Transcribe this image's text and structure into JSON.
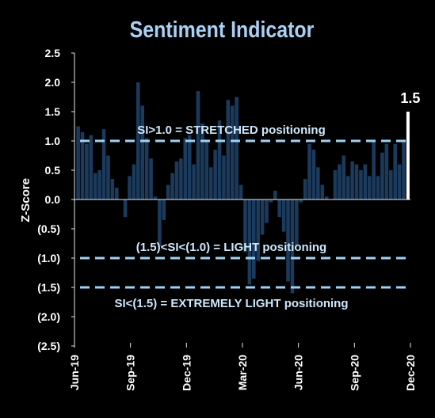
{
  "chart_data": {
    "type": "bar",
    "title": "Sentiment Indicator",
    "ylabel": "Z-Score",
    "xlabel": "",
    "ylim": [
      -2.5,
      2.5
    ],
    "y_ticks": [
      {
        "value": 2.5,
        "label": "2.5"
      },
      {
        "value": 2.0,
        "label": "2.0"
      },
      {
        "value": 1.5,
        "label": "1.5"
      },
      {
        "value": 1.0,
        "label": "1.0"
      },
      {
        "value": 0.5,
        "label": "0.5"
      },
      {
        "value": 0.0,
        "label": "0.0"
      },
      {
        "value": -0.5,
        "label": "(0.5)"
      },
      {
        "value": -1.0,
        "label": "(1.0)"
      },
      {
        "value": -1.5,
        "label": "(1.5)"
      },
      {
        "value": -2.0,
        "label": "(2.0)"
      },
      {
        "value": -2.5,
        "label": "(2.5)"
      }
    ],
    "x_ticks": [
      "Jun-19",
      "Sep-19",
      "Dec-19",
      "Mar-20",
      "Jun-20",
      "Sep-20",
      "Dec-20"
    ],
    "x_start": "2019-06-01",
    "x_end": "2020-12-01",
    "grid": false,
    "legend": "none",
    "series": [
      {
        "color": "#1b3a5c",
        "points": [
          {
            "x": "2019-06-07",
            "y": 1.25
          },
          {
            "x": "2019-06-14",
            "y": 1.15
          },
          {
            "x": "2019-06-21",
            "y": 0.95
          },
          {
            "x": "2019-06-28",
            "y": 1.1
          },
          {
            "x": "2019-07-05",
            "y": 0.45
          },
          {
            "x": "2019-07-12",
            "y": 0.5
          },
          {
            "x": "2019-07-19",
            "y": 1.2
          },
          {
            "x": "2019-07-26",
            "y": 0.75
          },
          {
            "x": "2019-08-02",
            "y": 0.35
          },
          {
            "x": "2019-08-09",
            "y": 0.2
          },
          {
            "x": "2019-08-16",
            "y": 0.0
          },
          {
            "x": "2019-08-23",
            "y": -0.3
          },
          {
            "x": "2019-08-30",
            "y": 0.4
          },
          {
            "x": "2019-09-06",
            "y": 0.6
          },
          {
            "x": "2019-09-13",
            "y": 2.0
          },
          {
            "x": "2019-09-20",
            "y": 1.6
          },
          {
            "x": "2019-09-27",
            "y": 1.05
          },
          {
            "x": "2019-10-04",
            "y": 0.7
          },
          {
            "x": "2019-10-11",
            "y": 0.05
          },
          {
            "x": "2019-10-18",
            "y": -0.8
          },
          {
            "x": "2019-10-25",
            "y": -0.35
          },
          {
            "x": "2019-11-01",
            "y": 0.25
          },
          {
            "x": "2019-11-08",
            "y": 0.45
          },
          {
            "x": "2019-11-15",
            "y": 0.65
          },
          {
            "x": "2019-11-22",
            "y": 0.7
          },
          {
            "x": "2019-11-29",
            "y": 1.05
          },
          {
            "x": "2019-12-06",
            "y": 1.1
          },
          {
            "x": "2019-12-13",
            "y": 0.6
          },
          {
            "x": "2019-12-20",
            "y": 1.85
          },
          {
            "x": "2019-12-27",
            "y": 1.3
          },
          {
            "x": "2020-01-03",
            "y": 1.0
          },
          {
            "x": "2020-01-10",
            "y": 0.55
          },
          {
            "x": "2020-01-17",
            "y": 0.85
          },
          {
            "x": "2020-01-24",
            "y": 1.35
          },
          {
            "x": "2020-01-31",
            "y": 0.75
          },
          {
            "x": "2020-02-07",
            "y": 1.7
          },
          {
            "x": "2020-02-14",
            "y": 1.6
          },
          {
            "x": "2020-02-21",
            "y": 1.75
          },
          {
            "x": "2020-02-28",
            "y": 0.25
          },
          {
            "x": "2020-03-06",
            "y": -0.9
          },
          {
            "x": "2020-03-13",
            "y": -1.45
          },
          {
            "x": "2020-03-20",
            "y": -1.35
          },
          {
            "x": "2020-03-27",
            "y": -1.05
          },
          {
            "x": "2020-04-03",
            "y": -0.6
          },
          {
            "x": "2020-04-10",
            "y": -0.4
          },
          {
            "x": "2020-04-17",
            "y": -0.05
          },
          {
            "x": "2020-04-24",
            "y": 0.15
          },
          {
            "x": "2020-05-01",
            "y": -0.3
          },
          {
            "x": "2020-05-08",
            "y": -0.55
          },
          {
            "x": "2020-05-15",
            "y": -1.4
          },
          {
            "x": "2020-05-22",
            "y": -1.6
          },
          {
            "x": "2020-05-29",
            "y": -0.8
          },
          {
            "x": "2020-06-05",
            "y": -0.05
          },
          {
            "x": "2020-06-12",
            "y": 0.35
          },
          {
            "x": "2020-06-19",
            "y": 0.95
          },
          {
            "x": "2020-06-26",
            "y": 0.85
          },
          {
            "x": "2020-07-03",
            "y": 0.55
          },
          {
            "x": "2020-07-10",
            "y": 0.25
          },
          {
            "x": "2020-07-17",
            "y": 0.05
          },
          {
            "x": "2020-07-24",
            "y": 0.0
          },
          {
            "x": "2020-07-31",
            "y": 0.5
          },
          {
            "x": "2020-08-07",
            "y": 0.6
          },
          {
            "x": "2020-08-14",
            "y": 0.75
          },
          {
            "x": "2020-08-21",
            "y": 0.4
          },
          {
            "x": "2020-08-28",
            "y": 0.65
          },
          {
            "x": "2020-09-04",
            "y": 0.6
          },
          {
            "x": "2020-09-11",
            "y": 0.5
          },
          {
            "x": "2020-09-18",
            "y": 0.6
          },
          {
            "x": "2020-09-25",
            "y": 0.4
          },
          {
            "x": "2020-10-02",
            "y": 1.0
          },
          {
            "x": "2020-10-09",
            "y": 0.4
          },
          {
            "x": "2020-10-16",
            "y": 0.8
          },
          {
            "x": "2020-10-23",
            "y": 0.95
          },
          {
            "x": "2020-10-30",
            "y": 0.5
          },
          {
            "x": "2020-11-06",
            "y": 0.95
          },
          {
            "x": "2020-11-13",
            "y": 0.6
          },
          {
            "x": "2020-11-20",
            "y": 1.0
          }
        ]
      }
    ],
    "highlight": {
      "x": "2020-11-27",
      "y": 1.5,
      "label": "1.5",
      "color": "#ffffff"
    },
    "reference_lines": [
      {
        "y": 1.0,
        "label": "SI>1.0 = STRETCHED positioning",
        "label_position": "above"
      },
      {
        "y": -1.0,
        "label": "(1.5)<SI<(1.0) = LIGHT positioning",
        "label_position": "above"
      },
      {
        "y": -1.5,
        "label": "SI<(1.5) = EXTREMELY LIGHT positioning",
        "label_position": "below"
      }
    ],
    "colors": {
      "background": "#000000",
      "bars": "#1b3a5c",
      "title": "#a9d0f5",
      "reference_line": "#9ed2f5",
      "reference_text": "#cfe8fb",
      "axis_text": "#ffffff"
    }
  }
}
